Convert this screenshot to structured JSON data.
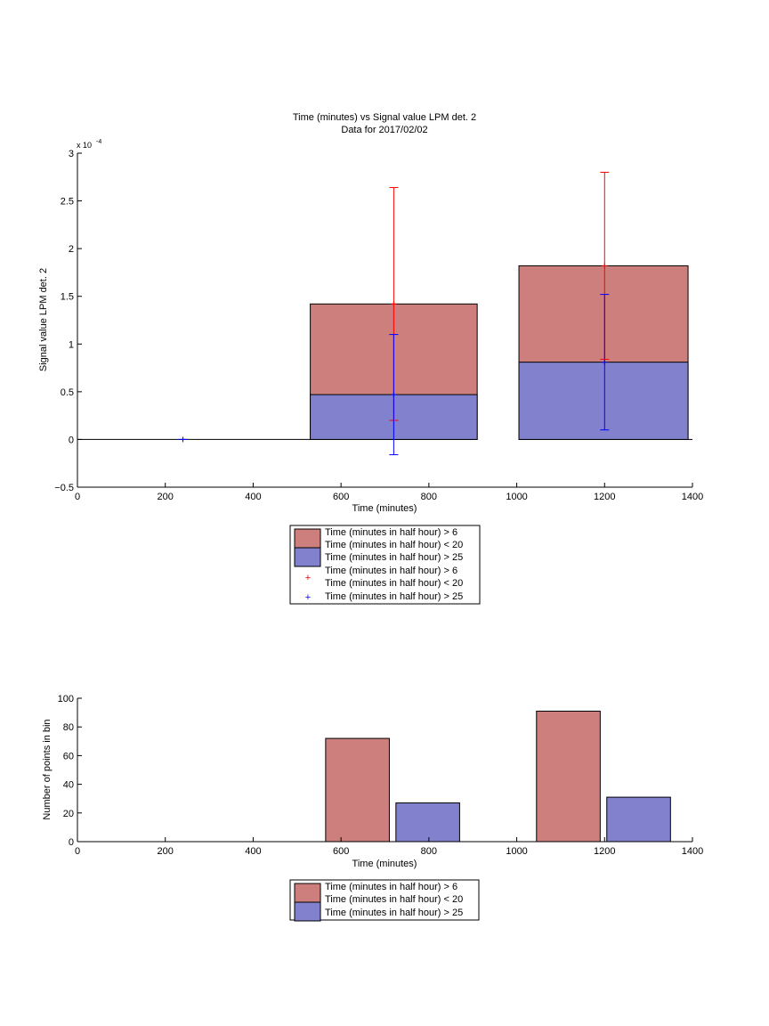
{
  "chart_data": [
    {
      "type": "bar",
      "title": "Time (minutes) vs Signal value LPM det. 2",
      "subtitle": "Data for 2017/02/02",
      "xlabel": "Time (minutes)",
      "ylabel": "Signal value LPM det. 2",
      "scale_label": "x 10",
      "scale_exponent": "-4",
      "xlim": [
        0,
        1400
      ],
      "ylim": [
        -0.5,
        3
      ],
      "xticks": [
        0,
        200,
        400,
        600,
        800,
        1000,
        1200,
        1400
      ],
      "yticks": [
        -0.5,
        0,
        0.5,
        1,
        1.5,
        2,
        2.5,
        3
      ],
      "ytick_labels": [
        "−0.5",
        "0",
        "0.5",
        "1",
        "1.5",
        "2",
        "2.5",
        "3"
      ],
      "grid": false,
      "legend_placement": "below",
      "legend_entries": [
        "Time (minutes in half hour) > 6",
        "Time (minutes in half hour) < 20",
        "Time (minutes in half hour) > 25",
        "Time (minutes in half hour) > 6",
        "Time (minutes in half hour) < 20",
        "Time (minutes in half hour) > 25"
      ],
      "colors": {
        "red_bar": "#cc7f7d",
        "blue_bar": "#8181cd",
        "red_err": "#ff0000",
        "blue_err": "#0000ff"
      },
      "series": [
        {
          "name": "Time (minutes in half hour) > 6 Time (minutes in half hour) < 20",
          "kind": "bar",
          "bars": [
            {
              "x_start": 0,
              "x_end": 240,
              "value": 0
            },
            {
              "x_start": 240,
              "x_end": 530,
              "value": 0
            },
            {
              "x_start": 530,
              "x_end": 910,
              "value": 1.42
            },
            {
              "x_start": 1005,
              "x_end": 1390,
              "value": 1.82
            }
          ]
        },
        {
          "name": "Time (minutes in half hour) > 25",
          "kind": "bar",
          "bars": [
            {
              "x_start": 530,
              "x_end": 910,
              "value": 0.47
            },
            {
              "x_start": 1005,
              "x_end": 1390,
              "value": 0.81
            }
          ]
        },
        {
          "name": "Time (minutes in half hour) > 6 Time (minutes in half hour) < 20",
          "kind": "errorbar",
          "points": [
            {
              "x": 720,
              "y": 1.42,
              "low": 0.2,
              "high": 2.64
            },
            {
              "x": 1200,
              "y": 1.82,
              "low": 0.84,
              "high": 2.8
            }
          ]
        },
        {
          "name": "Time (minutes in half hour) > 25",
          "kind": "errorbar",
          "points": [
            {
              "x": 240,
              "y": 0,
              "low": 0,
              "high": 0
            },
            {
              "x": 720,
              "y": 0.47,
              "low": -0.16,
              "high": 1.1
            },
            {
              "x": 1200,
              "y": 0.81,
              "low": 0.1,
              "high": 1.52
            }
          ]
        }
      ]
    },
    {
      "type": "bar",
      "title": "",
      "xlabel": "Time (minutes)",
      "ylabel": "Number of points in bin",
      "xlim": [
        0,
        1400
      ],
      "ylim": [
        0,
        100
      ],
      "xticks": [
        0,
        200,
        400,
        600,
        800,
        1000,
        1200,
        1400
      ],
      "yticks": [
        0,
        20,
        40,
        60,
        80,
        100
      ],
      "grid": false,
      "legend_placement": "below",
      "legend_entries": [
        "Time (minutes in half hour) > 6",
        "Time (minutes in half hour) < 20",
        "Time (minutes in half hour) > 25"
      ],
      "colors": {
        "red_bar": "#cc7f7d",
        "blue_bar": "#8181cd"
      },
      "series": [
        {
          "name": "Time (minutes in half hour) > 6 Time (minutes in half hour) < 20",
          "bars": [
            {
              "x_start": 565,
              "x_end": 710,
              "value": 72
            },
            {
              "x_start": 1045,
              "x_end": 1190,
              "value": 91
            }
          ]
        },
        {
          "name": "Time (minutes in half hour) > 25",
          "bars": [
            {
              "x_start": 725,
              "x_end": 870,
              "value": 27
            },
            {
              "x_start": 1205,
              "x_end": 1350,
              "value": 31
            }
          ]
        }
      ]
    }
  ]
}
